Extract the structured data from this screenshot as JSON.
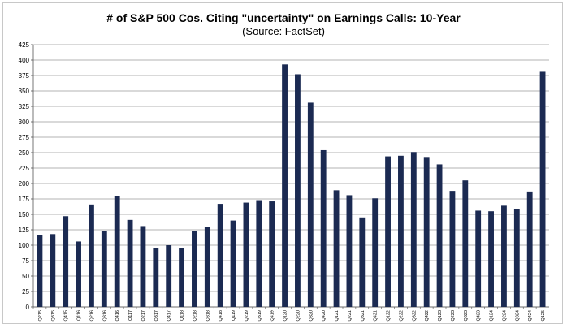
{
  "chart_data": {
    "type": "bar",
    "title": "# of S&P 500 Cos. Citing \"uncertainty\" on Earnings Calls: 10-Year",
    "subtitle": "(Source: FactSet)",
    "xlabel": "",
    "ylabel": "",
    "ylim": [
      0,
      425
    ],
    "yticks": [
      0,
      25,
      50,
      75,
      100,
      125,
      150,
      175,
      200,
      225,
      250,
      275,
      300,
      325,
      350,
      375,
      400,
      425
    ],
    "grid": true,
    "bar_color": "#1b2a52",
    "categories": [
      "Q215",
      "Q315",
      "Q415",
      "Q116",
      "Q216",
      "Q316",
      "Q416",
      "Q117",
      "Q217",
      "Q317",
      "Q417",
      "Q118",
      "Q218",
      "Q318",
      "Q418",
      "Q119",
      "Q219",
      "Q319",
      "Q419",
      "Q120",
      "Q220",
      "Q320",
      "Q420",
      "Q121",
      "Q221",
      "Q321",
      "Q421",
      "Q122",
      "Q222",
      "Q322",
      "Q422",
      "Q123",
      "Q223",
      "Q323",
      "Q423",
      "Q124",
      "Q224",
      "Q324",
      "Q424",
      "Q125"
    ],
    "values": [
      117,
      118,
      147,
      106,
      166,
      123,
      179,
      141,
      131,
      96,
      100,
      95,
      123,
      129,
      167,
      140,
      169,
      173,
      171,
      393,
      377,
      331,
      254,
      189,
      181,
      145,
      176,
      244,
      245,
      251,
      243,
      231,
      188,
      205,
      156,
      155,
      164,
      158,
      187,
      381
    ]
  }
}
